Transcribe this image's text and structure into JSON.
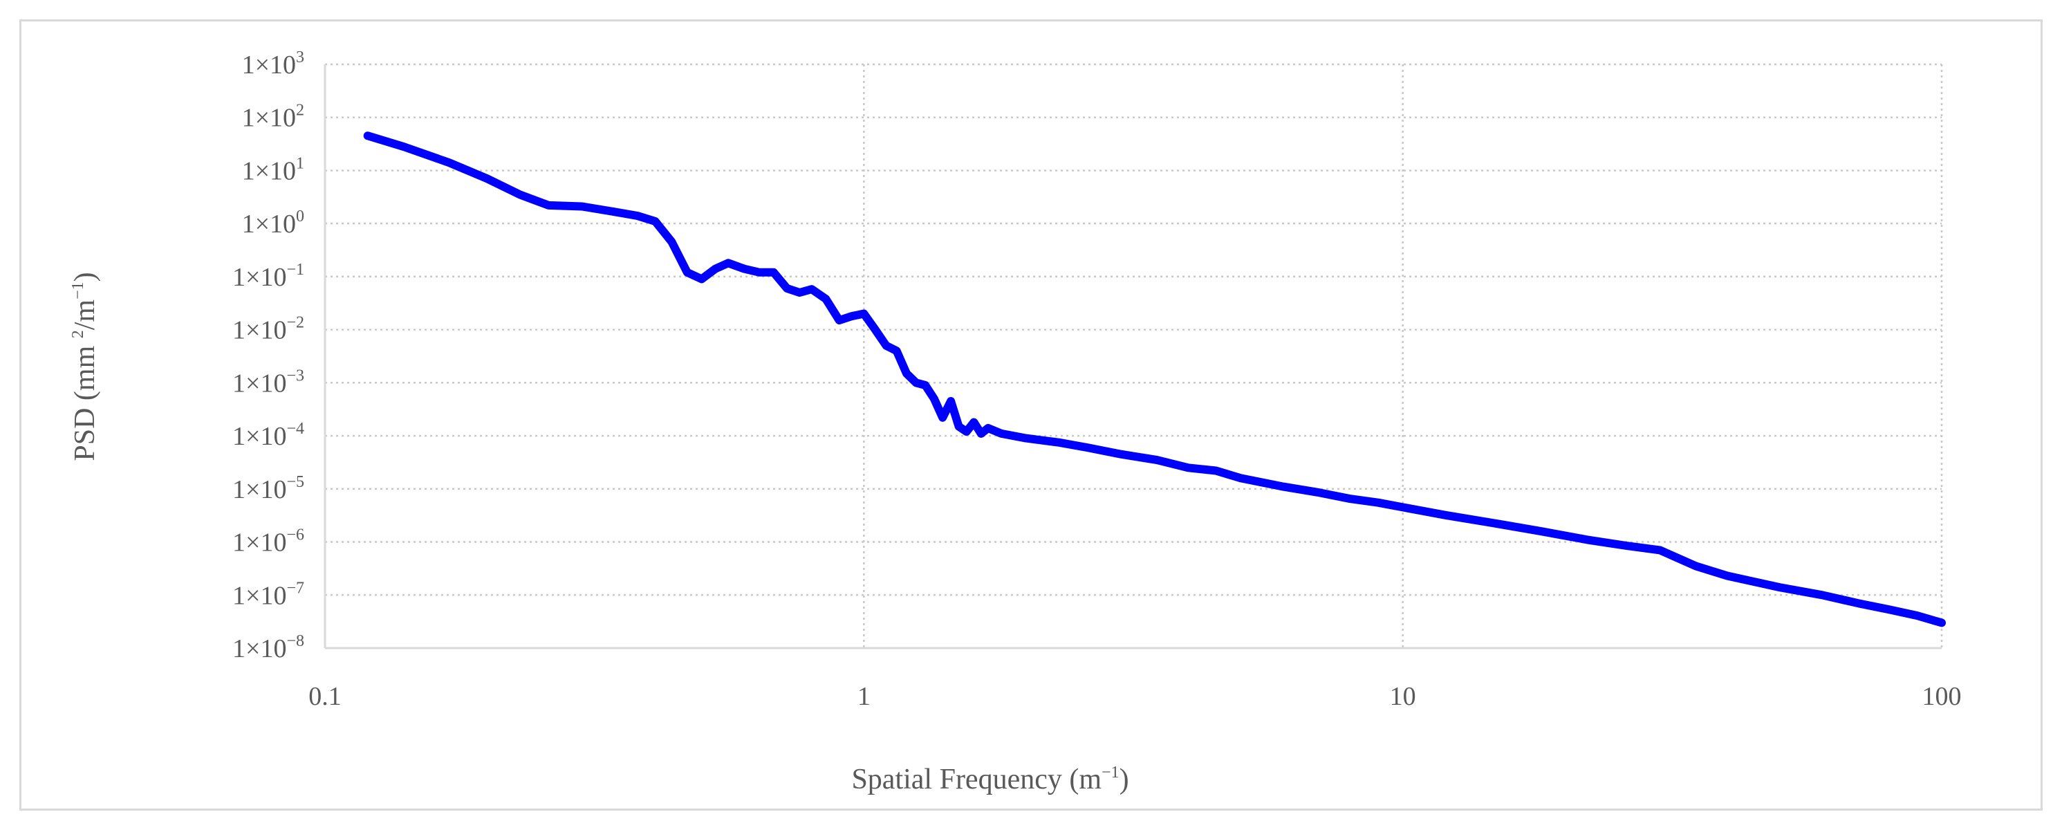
{
  "chart_data": {
    "type": "line",
    "title": "",
    "xlabel": {
      "base": "Spatial Frequency  (m",
      "sup": "−1",
      "tail": ")"
    },
    "ylabel": {
      "part1": "PSD (mm ",
      "sup1": "2",
      "part2": "/m",
      "sup2": "−1",
      "tail": ")"
    },
    "xscale": "log",
    "yscale": "log",
    "xlim": [
      0.1,
      100
    ],
    "ylim": [
      1e-08,
      1000
    ],
    "grid": true,
    "legend": "none",
    "x_ticks": [
      {
        "value": 0.1,
        "label": "0.1"
      },
      {
        "value": 1,
        "label": "1"
      },
      {
        "value": 10,
        "label": "10"
      },
      {
        "value": 100,
        "label": "100"
      }
    ],
    "y_ticks": [
      {
        "exp": 3,
        "base": "1×10",
        "sup": "3"
      },
      {
        "exp": 2,
        "base": "1×10",
        "sup": "2"
      },
      {
        "exp": 1,
        "base": "1×10",
        "sup": "1"
      },
      {
        "exp": 0,
        "base": "1×10",
        "sup": "0"
      },
      {
        "exp": -1,
        "base": "1×10",
        "sup": "−1"
      },
      {
        "exp": -2,
        "base": "1×10",
        "sup": "−2"
      },
      {
        "exp": -3,
        "base": "1×10",
        "sup": "−3"
      },
      {
        "exp": -4,
        "base": "1×10",
        "sup": "−4"
      },
      {
        "exp": -5,
        "base": "1×10",
        "sup": "−5"
      },
      {
        "exp": -6,
        "base": "1×10",
        "sup": "−6"
      },
      {
        "exp": -7,
        "base": "1×10",
        "sup": "−7"
      },
      {
        "exp": -8,
        "base": "1×10",
        "sup": "−8"
      }
    ],
    "series": [
      {
        "color": "#0000ff",
        "points": [
          [
            0.12,
            45
          ],
          [
            0.14,
            28
          ],
          [
            0.17,
            14
          ],
          [
            0.2,
            7
          ],
          [
            0.23,
            3.5
          ],
          [
            0.26,
            2.2
          ],
          [
            0.3,
            2.1
          ],
          [
            0.34,
            1.7
          ],
          [
            0.38,
            1.4
          ],
          [
            0.41,
            1.1
          ],
          [
            0.44,
            0.45
          ],
          [
            0.47,
            0.12
          ],
          [
            0.5,
            0.09
          ],
          [
            0.53,
            0.14
          ],
          [
            0.56,
            0.18
          ],
          [
            0.6,
            0.14
          ],
          [
            0.64,
            0.12
          ],
          [
            0.68,
            0.12
          ],
          [
            0.72,
            0.06
          ],
          [
            0.76,
            0.05
          ],
          [
            0.8,
            0.058
          ],
          [
            0.85,
            0.038
          ],
          [
            0.9,
            0.015
          ],
          [
            0.95,
            0.018
          ],
          [
            1.0,
            0.02
          ],
          [
            1.05,
            0.01
          ],
          [
            1.1,
            0.005
          ],
          [
            1.15,
            0.004
          ],
          [
            1.2,
            0.0015
          ],
          [
            1.25,
            0.001
          ],
          [
            1.3,
            0.0009
          ],
          [
            1.35,
            0.0005
          ],
          [
            1.4,
            0.00022
          ],
          [
            1.45,
            0.00045
          ],
          [
            1.5,
            0.00015
          ],
          [
            1.55,
            0.00012
          ],
          [
            1.6,
            0.00018
          ],
          [
            1.65,
            0.00011
          ],
          [
            1.7,
            0.00014
          ],
          [
            1.8,
            0.00011
          ],
          [
            2.0,
            9e-05
          ],
          [
            2.3,
            7.5e-05
          ],
          [
            2.6,
            6e-05
          ],
          [
            3.0,
            4.5e-05
          ],
          [
            3.5,
            3.5e-05
          ],
          [
            4.0,
            2.5e-05
          ],
          [
            4.5,
            2.2e-05
          ],
          [
            5.0,
            1.6e-05
          ],
          [
            6.0,
            1.1e-05
          ],
          [
            7.0,
            8.5e-06
          ],
          [
            8.0,
            6.5e-06
          ],
          [
            9.0,
            5.5e-06
          ],
          [
            10.0,
            4.5e-06
          ],
          [
            12.0,
            3.2e-06
          ],
          [
            15.0,
            2.2e-06
          ],
          [
            18.0,
            1.6e-06
          ],
          [
            22.0,
            1.1e-06
          ],
          [
            26.0,
            8.5e-07
          ],
          [
            30.0,
            7e-07
          ],
          [
            35.0,
            3.5e-07
          ],
          [
            40.0,
            2.3e-07
          ],
          [
            50.0,
            1.4e-07
          ],
          [
            60.0,
            1e-07
          ],
          [
            70.0,
            7e-08
          ],
          [
            80.0,
            5.3e-08
          ],
          [
            90.0,
            4.1e-08
          ],
          [
            100.0,
            3e-08
          ]
        ]
      }
    ]
  }
}
